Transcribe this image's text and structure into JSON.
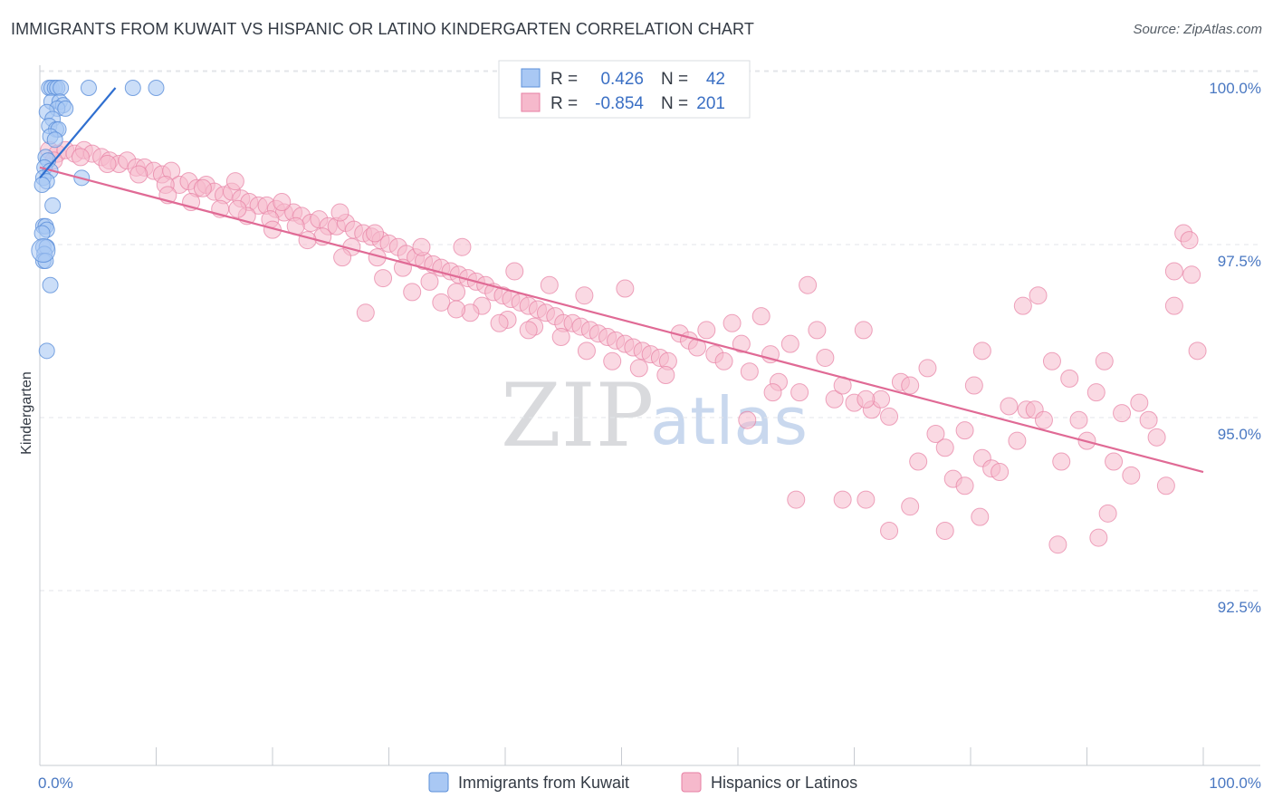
{
  "header": {
    "title": "IMMIGRANTS FROM KUWAIT VS HISPANIC OR LATINO KINDERGARTEN CORRELATION CHART",
    "source": "Source: ZipAtlas.com"
  },
  "watermark": {
    "zip": "ZIP",
    "atlas": "atlas"
  },
  "legend_box": {
    "rows": [
      {
        "r_label": "R =",
        "r_value": "0.426",
        "n_label": "N =",
        "n_value": "42",
        "color": "#a9c8f4"
      },
      {
        "r_label": "R =",
        "r_value": "-0.854",
        "n_label": "N =",
        "n_value": "201",
        "color": "#f6b9cc"
      }
    ]
  },
  "bottom_legend": [
    {
      "label": "Immigrants from Kuwait",
      "color": "#a9c8f4"
    },
    {
      "label": "Hispanics or Latinos",
      "color": "#f6b9cc"
    }
  ],
  "chart_data": {
    "type": "scatter",
    "title": "IMMIGRANTS FROM KUWAIT VS HISPANIC OR LATINO KINDERGARTEN CORRELATION CHART",
    "xlabel": "",
    "ylabel": "Kindergarten",
    "xlim": [
      0,
      100
    ],
    "ylim": [
      90.0,
      100.2
    ],
    "x_ticks": [
      {
        "value": 0,
        "label": "0.0%"
      },
      {
        "value": 100,
        "label": "100.0%"
      }
    ],
    "y_ticks": [
      {
        "value": 100.0,
        "label": "100.0%"
      },
      {
        "value": 97.5,
        "label": "97.5%"
      },
      {
        "value": 95.0,
        "label": "95.0%"
      },
      {
        "value": 92.5,
        "label": "92.5%"
      }
    ],
    "grid": "horizontal-dashed",
    "series": [
      {
        "name": "Immigrants from Kuwait",
        "color": "#a9c8f4",
        "stroke": "#5b8fd9",
        "trend": {
          "x": [
            0.0,
            6.5
          ],
          "y": [
            98.7,
            100.0
          ],
          "color": "#2f6fd0"
        },
        "points": [
          [
            0.8,
            100.0
          ],
          [
            1.0,
            100.0
          ],
          [
            1.3,
            100.0
          ],
          [
            1.5,
            100.0
          ],
          [
            1.8,
            100.0
          ],
          [
            4.2,
            100.0
          ],
          [
            8.0,
            100.0
          ],
          [
            10.0,
            100.0
          ],
          [
            1.0,
            99.8
          ],
          [
            1.7,
            99.8
          ],
          [
            2.0,
            99.75
          ],
          [
            1.5,
            99.7
          ],
          [
            2.2,
            99.7
          ],
          [
            0.6,
            99.65
          ],
          [
            1.1,
            99.55
          ],
          [
            0.8,
            99.45
          ],
          [
            1.4,
            99.4
          ],
          [
            1.6,
            99.4
          ],
          [
            0.9,
            99.3
          ],
          [
            1.3,
            99.25
          ],
          [
            0.5,
            99.0
          ],
          [
            0.7,
            98.95
          ],
          [
            0.4,
            98.85
          ],
          [
            0.9,
            98.8
          ],
          [
            0.3,
            98.7
          ],
          [
            0.6,
            98.65
          ],
          [
            0.2,
            98.6
          ],
          [
            3.6,
            98.7
          ],
          [
            1.1,
            98.3
          ],
          [
            0.3,
            98.0
          ],
          [
            0.5,
            98.0
          ],
          [
            0.6,
            97.95
          ],
          [
            0.2,
            97.9
          ],
          [
            0.3,
            97.7
          ],
          [
            0.6,
            97.7
          ],
          [
            0.4,
            97.6
          ],
          [
            0.3,
            97.5
          ],
          [
            0.5,
            97.5
          ],
          [
            0.9,
            97.15
          ],
          [
            0.6,
            96.2
          ]
        ],
        "large_points": [
          [
            0.3,
            97.65
          ]
        ]
      },
      {
        "name": "Hispanics or Latinos",
        "color": "#f6b9cc",
        "stroke": "#e77fa3",
        "trend": {
          "x": [
            0.0,
            100.0
          ],
          "y": [
            98.85,
            94.45
          ],
          "color": "#e06a95"
        },
        "points": [
          [
            0.8,
            99.1
          ],
          [
            1.5,
            99.05
          ],
          [
            2.2,
            99.1
          ],
          [
            3.0,
            99.05
          ],
          [
            3.8,
            99.1
          ],
          [
            4.5,
            99.05
          ],
          [
            5.3,
            99.0
          ],
          [
            6.0,
            98.95
          ],
          [
            6.8,
            98.9
          ],
          [
            7.5,
            98.95
          ],
          [
            8.3,
            98.85
          ],
          [
            9.0,
            98.85
          ],
          [
            9.8,
            98.8
          ],
          [
            10.5,
            98.75
          ],
          [
            11.3,
            98.8
          ],
          [
            12.0,
            98.6
          ],
          [
            12.8,
            98.65
          ],
          [
            13.5,
            98.55
          ],
          [
            14.3,
            98.6
          ],
          [
            15.0,
            98.5
          ],
          [
            15.8,
            98.45
          ],
          [
            16.5,
            98.5
          ],
          [
            17.3,
            98.4
          ],
          [
            18.0,
            98.35
          ],
          [
            18.8,
            98.3
          ],
          [
            19.5,
            98.3
          ],
          [
            20.3,
            98.25
          ],
          [
            21.0,
            98.2
          ],
          [
            21.8,
            98.2
          ],
          [
            22.5,
            98.15
          ],
          [
            23.3,
            98.05
          ],
          [
            24.0,
            98.1
          ],
          [
            24.8,
            98.0
          ],
          [
            25.5,
            98.0
          ],
          [
            26.3,
            98.05
          ],
          [
            27.0,
            97.95
          ],
          [
            27.8,
            97.9
          ],
          [
            28.5,
            97.85
          ],
          [
            29.3,
            97.8
          ],
          [
            30.0,
            97.75
          ],
          [
            30.8,
            97.7
          ],
          [
            31.5,
            97.6
          ],
          [
            32.3,
            97.55
          ],
          [
            33.0,
            97.5
          ],
          [
            33.8,
            97.45
          ],
          [
            34.5,
            97.4
          ],
          [
            35.3,
            97.35
          ],
          [
            36.0,
            97.3
          ],
          [
            36.8,
            97.25
          ],
          [
            37.5,
            97.2
          ],
          [
            38.3,
            97.15
          ],
          [
            39.0,
            97.05
          ],
          [
            39.8,
            97.0
          ],
          [
            40.5,
            96.95
          ],
          [
            41.3,
            96.9
          ],
          [
            42.0,
            96.85
          ],
          [
            42.8,
            96.8
          ],
          [
            43.5,
            96.75
          ],
          [
            44.3,
            96.7
          ],
          [
            45.0,
            96.6
          ],
          [
            45.8,
            96.6
          ],
          [
            46.5,
            96.55
          ],
          [
            47.3,
            96.5
          ],
          [
            48.0,
            96.45
          ],
          [
            48.8,
            96.4
          ],
          [
            49.5,
            96.35
          ],
          [
            50.3,
            96.3
          ],
          [
            51.0,
            96.25
          ],
          [
            51.8,
            96.2
          ],
          [
            52.5,
            96.15
          ],
          [
            53.3,
            96.1
          ],
          [
            54.0,
            96.05
          ],
          [
            1.2,
            98.95
          ],
          [
            3.5,
            99.0
          ],
          [
            5.8,
            98.9
          ],
          [
            8.5,
            98.75
          ],
          [
            10.8,
            98.6
          ],
          [
            13.0,
            98.35
          ],
          [
            15.5,
            98.25
          ],
          [
            17.8,
            98.15
          ],
          [
            19.8,
            98.1
          ],
          [
            22.0,
            98.0
          ],
          [
            24.3,
            97.85
          ],
          [
            26.8,
            97.7
          ],
          [
            29.0,
            97.55
          ],
          [
            31.2,
            97.4
          ],
          [
            33.5,
            97.2
          ],
          [
            35.8,
            97.05
          ],
          [
            38.0,
            96.85
          ],
          [
            40.2,
            96.65
          ],
          [
            42.5,
            96.55
          ],
          [
            44.8,
            96.4
          ],
          [
            47.0,
            96.2
          ],
          [
            49.2,
            96.05
          ],
          [
            51.5,
            95.95
          ],
          [
            53.8,
            95.85
          ],
          [
            11.0,
            98.45
          ],
          [
            14.0,
            98.55
          ],
          [
            17.0,
            98.25
          ],
          [
            20.0,
            97.95
          ],
          [
            23.0,
            97.8
          ],
          [
            26.0,
            97.55
          ],
          [
            29.5,
            97.25
          ],
          [
            32.0,
            97.05
          ],
          [
            34.5,
            96.9
          ],
          [
            37.0,
            96.75
          ],
          [
            39.5,
            96.6
          ],
          [
            42.0,
            96.5
          ],
          [
            16.8,
            98.65
          ],
          [
            20.8,
            98.35
          ],
          [
            25.8,
            98.2
          ],
          [
            28.8,
            97.9
          ],
          [
            32.8,
            97.7
          ],
          [
            36.3,
            97.7
          ],
          [
            40.8,
            97.35
          ],
          [
            43.8,
            97.15
          ],
          [
            46.8,
            97.0
          ],
          [
            50.3,
            97.1
          ],
          [
            28.0,
            96.75
          ],
          [
            35.8,
            96.8
          ],
          [
            55.0,
            96.45
          ],
          [
            55.8,
            96.35
          ],
          [
            56.5,
            96.25
          ],
          [
            57.3,
            96.5
          ],
          [
            58.0,
            96.15
          ],
          [
            58.8,
            96.05
          ],
          [
            59.5,
            96.6
          ],
          [
            60.3,
            96.3
          ],
          [
            61.0,
            95.9
          ],
          [
            62.0,
            96.7
          ],
          [
            62.8,
            96.15
          ],
          [
            63.5,
            95.75
          ],
          [
            64.5,
            96.3
          ],
          [
            65.3,
            95.6
          ],
          [
            66.0,
            97.15
          ],
          [
            66.8,
            96.5
          ],
          [
            67.5,
            96.1
          ],
          [
            68.3,
            95.5
          ],
          [
            69.0,
            95.7
          ],
          [
            70.0,
            95.45
          ],
          [
            70.8,
            96.5
          ],
          [
            71.5,
            95.35
          ],
          [
            72.3,
            95.5
          ],
          [
            73.0,
            95.25
          ],
          [
            74.0,
            95.75
          ],
          [
            74.8,
            95.7
          ],
          [
            75.5,
            94.6
          ],
          [
            76.3,
            95.95
          ],
          [
            77.0,
            95.0
          ],
          [
            77.8,
            94.8
          ],
          [
            78.5,
            94.35
          ],
          [
            79.5,
            95.05
          ],
          [
            80.3,
            95.7
          ],
          [
            81.0,
            94.65
          ],
          [
            81.8,
            94.5
          ],
          [
            82.5,
            94.45
          ],
          [
            83.3,
            95.4
          ],
          [
            84.0,
            94.9
          ],
          [
            84.8,
            95.35
          ],
          [
            85.5,
            95.35
          ],
          [
            86.3,
            95.2
          ],
          [
            87.0,
            96.05
          ],
          [
            87.8,
            94.6
          ],
          [
            88.5,
            95.8
          ],
          [
            89.3,
            95.2
          ],
          [
            90.0,
            94.9
          ],
          [
            90.8,
            95.6
          ],
          [
            91.5,
            96.05
          ],
          [
            92.3,
            94.6
          ],
          [
            93.0,
            95.3
          ],
          [
            93.8,
            94.4
          ],
          [
            94.5,
            95.45
          ],
          [
            95.3,
            95.2
          ],
          [
            96.0,
            94.95
          ],
          [
            96.8,
            94.25
          ],
          [
            97.5,
            97.35
          ],
          [
            98.3,
            97.9
          ],
          [
            99.0,
            97.3
          ],
          [
            99.5,
            96.2
          ],
          [
            98.8,
            97.8
          ],
          [
            65.0,
            94.05
          ],
          [
            69.0,
            94.05
          ],
          [
            71.0,
            94.05
          ],
          [
            73.0,
            93.6
          ],
          [
            74.8,
            93.95
          ],
          [
            77.8,
            93.6
          ],
          [
            79.5,
            94.25
          ],
          [
            80.8,
            93.8
          ],
          [
            87.5,
            93.4
          ],
          [
            91.0,
            93.5
          ],
          [
            91.8,
            93.85
          ],
          [
            97.5,
            96.85
          ],
          [
            84.5,
            96.85
          ],
          [
            85.8,
            97.0
          ],
          [
            81.0,
            96.2
          ],
          [
            71.0,
            95.5
          ],
          [
            60.8,
            95.2
          ],
          [
            63.0,
            95.6
          ]
        ]
      }
    ]
  }
}
